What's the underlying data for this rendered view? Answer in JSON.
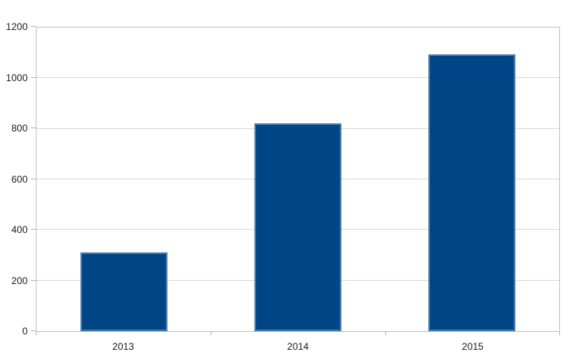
{
  "chart_data": {
    "type": "bar",
    "title": "",
    "xlabel": "",
    "ylabel": "",
    "categories": [
      "2013",
      "2014",
      "2015"
    ],
    "values": [
      310,
      820,
      1095
    ],
    "ylim": [
      0,
      1200
    ],
    "yticks": [
      0,
      200,
      400,
      600,
      800,
      1000,
      1200
    ],
    "grid": true,
    "legend": "none",
    "bar_width_fraction": 0.5,
    "colors": {
      "bar_fill": "#004586",
      "bar_edge_highlight": "#5c80a8",
      "gridline": "#d9d9d9",
      "plot_border": "#c3c3c3",
      "tick": "#b5b5b5",
      "label_text": "#1b1b1b",
      "background": "#ffffff"
    }
  }
}
